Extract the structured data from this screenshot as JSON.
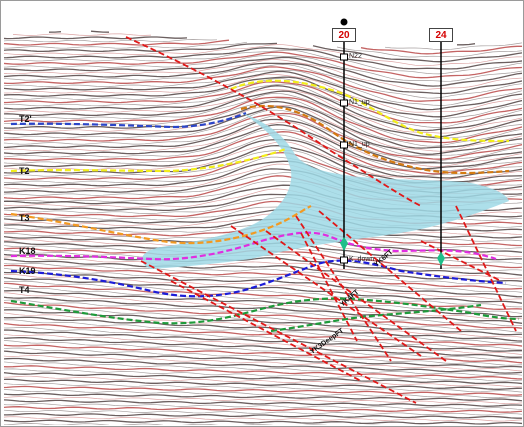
{
  "colors": {
    "background": "#ffffff",
    "trace_dark": "#3a2a2a",
    "trace_red": "#b03030",
    "salt_body": "#9fd9e6",
    "fault": "#e01818",
    "horizon_T2_prime": "#2a45c8",
    "horizon_T2": "#f2ee1a",
    "horizon_T3": "#f29a22",
    "horizon_K18": "#e02ee0",
    "horizon_K19": "#1c1cd8",
    "horizon_T4": "#1e9a3a",
    "horizon_N1_up": "#f2ee1a",
    "horizon_N1_mid": "#d47a10",
    "well_track": "#000000",
    "well_marker": "#1fbf8a"
  },
  "horizon_labels": [
    "T2'",
    "T2",
    "T3",
    "K18",
    "K19",
    "T4"
  ],
  "wells": [
    {
      "name": "20"
    },
    {
      "name": "24"
    }
  ],
  "well_markers": {
    "N22": "N22",
    "N1_up": "N1_up",
    "N1_up_lower": "N1_up",
    "K_down": "K_down"
  },
  "fault_labels": {
    "f1": "YK6FT",
    "f2": "YK4FT",
    "f3": "YK3DeepFT"
  }
}
